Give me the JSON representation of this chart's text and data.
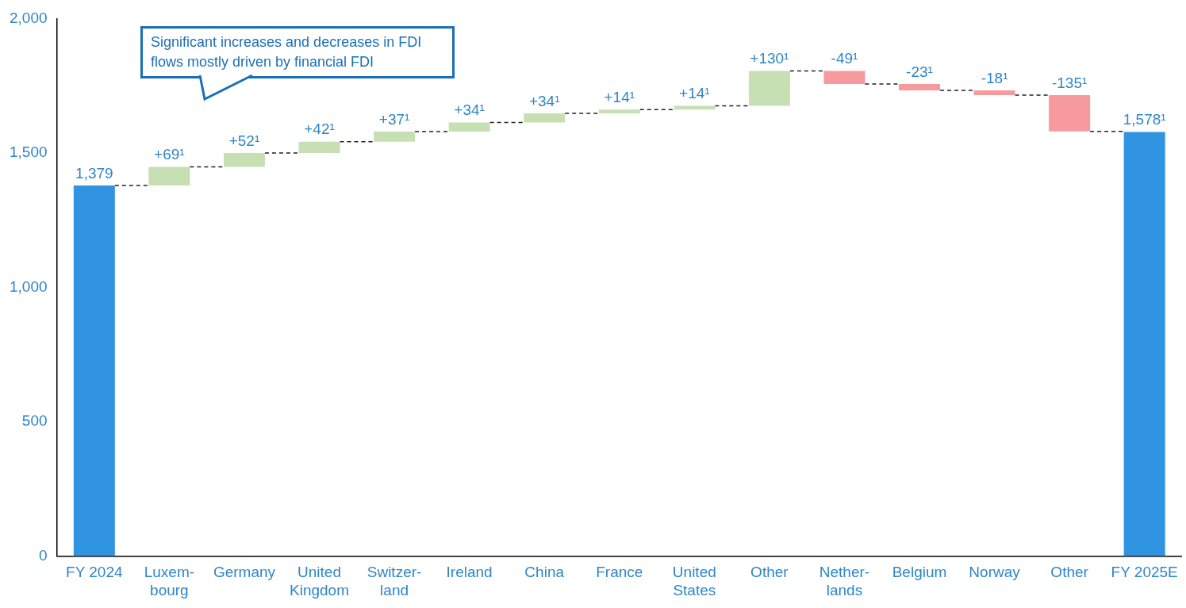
{
  "chart_data": {
    "type": "bar",
    "categories": [
      "FY 2024",
      "Luxem-bourg",
      "Germany",
      "United Kingdom",
      "Switzer-land",
      "Ireland",
      "China",
      "France",
      "United States",
      "Other",
      "Nether-lands",
      "Belgium",
      "Norway",
      "Other",
      "FY 2025E"
    ],
    "values": [
      1379,
      69,
      52,
      42,
      37,
      34,
      34,
      14,
      14,
      130,
      -49,
      -23,
      -18,
      -135,
      1578
    ],
    "base": [
      0,
      1379,
      1448,
      1500,
      1542,
      1579,
      1613,
      1647,
      1661,
      1675,
      1805,
      1756,
      1733,
      1715,
      0
    ],
    "colors": [
      "#3194e0",
      "#c6e0b4",
      "#c6e0b4",
      "#c6e0b4",
      "#c6e0b4",
      "#c6e0b4",
      "#c6e0b4",
      "#c6e0b4",
      "#c6e0b4",
      "#c6e0b4",
      "#f79a9e",
      "#f79a9e",
      "#f79a9e",
      "#f79a9e",
      "#3194e0"
    ],
    "value_labels": [
      "1,379",
      "+69¹",
      "+52¹",
      "+42¹",
      "+37¹",
      "+34¹",
      "+34¹",
      "+14¹",
      "+14¹",
      "+130¹",
      "-49¹",
      "-23¹",
      "-18¹",
      "-135¹",
      "1,578¹"
    ],
    "ylim": [
      0,
      2000
    ],
    "yticks": [
      0,
      500,
      {
        "value": 1000,
        "label": "1,000"
      },
      {
        "value": 1500,
        "label": "1,500"
      },
      {
        "value": 2000,
        "label": "2,000"
      }
    ],
    "grid": false,
    "legend": false,
    "annotations": [
      "Significant increases and decreases in FDI flows mostly driven by financial FDI"
    ]
  }
}
